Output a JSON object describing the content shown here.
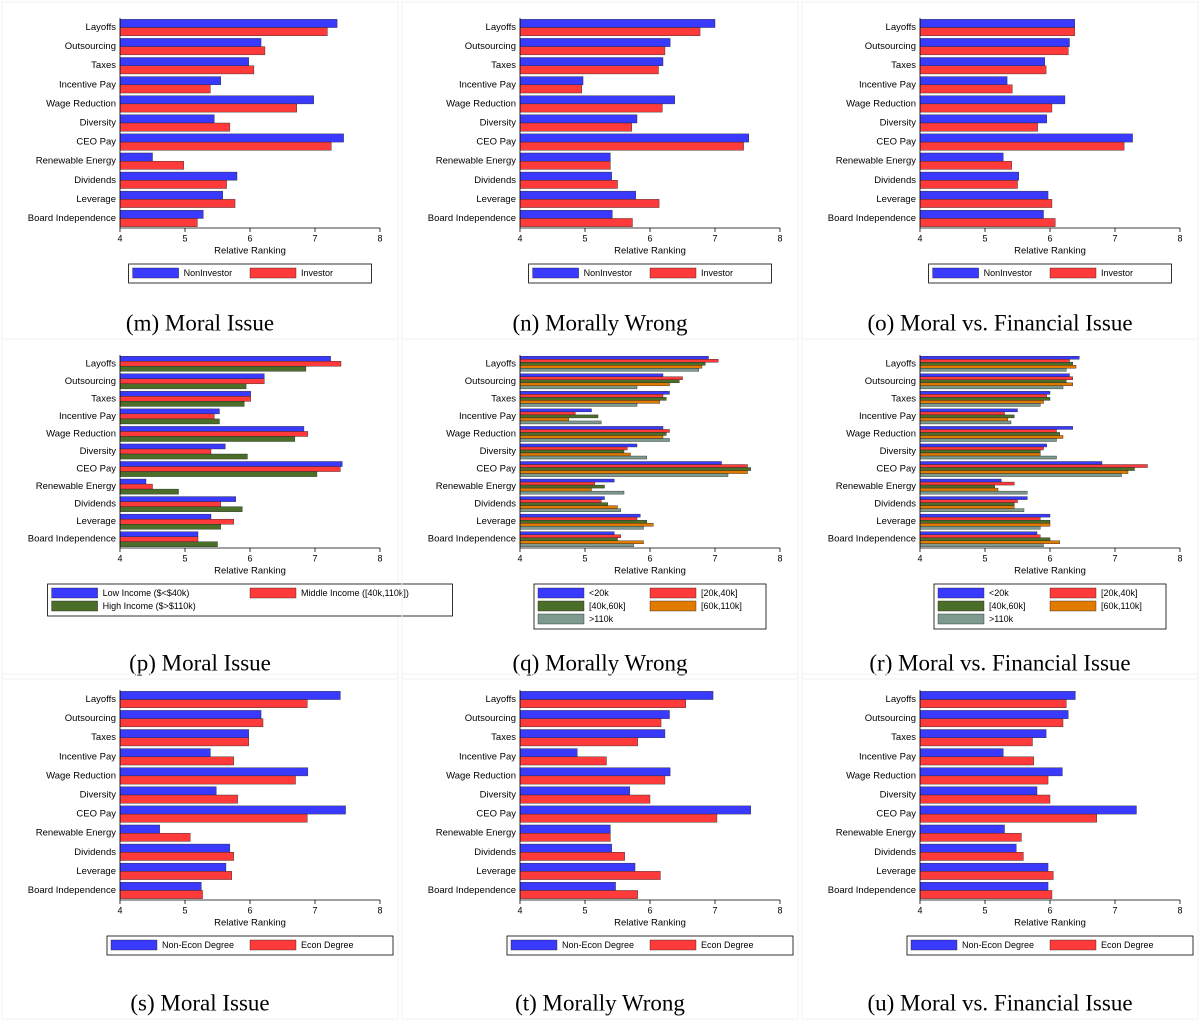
{
  "chart_data": [
    {
      "type": "hbar",
      "caption": "(m) Moral Issue",
      "x_label": "Relative Ranking",
      "xlim": [
        4,
        8
      ],
      "xticks": [
        4,
        5,
        6,
        7,
        8
      ],
      "categories": [
        "Layoffs",
        "Outsourcing",
        "Taxes",
        "Incentive Pay",
        "Wage Reduction",
        "Diversity",
        "CEO Pay",
        "Renewable Energy",
        "Dividends",
        "Leverage",
        "Board Independence"
      ],
      "series": [
        {
          "name": "NonInvestor",
          "color": "#3a3aff",
          "values": [
            7.34,
            6.17,
            5.98,
            5.55,
            6.98,
            5.45,
            7.44,
            4.5,
            5.8,
            5.58,
            5.28
          ]
        },
        {
          "name": "Investor",
          "color": "#ff3a3a",
          "values": [
            7.19,
            6.23,
            6.06,
            5.39,
            6.72,
            5.69,
            7.25,
            4.98,
            5.64,
            5.77,
            5.19
          ]
        }
      ]
    },
    {
      "type": "hbar",
      "caption": "(n) Morally Wrong",
      "x_label": "Relative Ranking",
      "xlim": [
        4,
        8
      ],
      "xticks": [
        4,
        5,
        6,
        7,
        8
      ],
      "categories": [
        "Layoffs",
        "Outsourcing",
        "Taxes",
        "Incentive Pay",
        "Wage Reduction",
        "Diversity",
        "CEO Pay",
        "Renewable Energy",
        "Dividends",
        "Leverage",
        "Board Independence"
      ],
      "series": [
        {
          "name": "NonInvestor",
          "color": "#3a3aff",
          "values": [
            7.0,
            6.31,
            6.2,
            4.97,
            6.38,
            5.8,
            7.52,
            5.39,
            5.41,
            5.78,
            5.42
          ]
        },
        {
          "name": "Investor",
          "color": "#ff3a3a",
          "values": [
            6.77,
            6.23,
            6.13,
            4.95,
            6.19,
            5.72,
            7.44,
            5.39,
            5.5,
            6.14,
            5.73
          ]
        }
      ]
    },
    {
      "type": "hbar",
      "caption": "(o) Moral vs. Financial Issue",
      "x_label": "Relative Ranking",
      "xlim": [
        4,
        8
      ],
      "xticks": [
        4,
        5,
        6,
        7,
        8
      ],
      "categories": [
        "Layoffs",
        "Outsourcing",
        "Taxes",
        "Incentive Pay",
        "Wage Reduction",
        "Diversity",
        "CEO Pay",
        "Renewable Energy",
        "Dividends",
        "Leverage",
        "Board Independence"
      ],
      "series": [
        {
          "name": "NonInvestor",
          "color": "#3a3aff",
          "values": [
            6.38,
            6.3,
            5.92,
            5.34,
            6.23,
            5.95,
            7.27,
            5.28,
            5.52,
            5.97,
            5.9
          ]
        },
        {
          "name": "Investor",
          "color": "#ff3a3a",
          "values": [
            6.38,
            6.28,
            5.94,
            5.42,
            6.03,
            5.81,
            7.14,
            5.41,
            5.5,
            6.03,
            6.08
          ]
        }
      ]
    },
    {
      "type": "hbar",
      "caption": "(p) Moral Issue",
      "x_label": "Relative Ranking",
      "xlim": [
        4,
        8
      ],
      "xticks": [
        4,
        5,
        6,
        7,
        8
      ],
      "categories": [
        "Layoffs",
        "Outsourcing",
        "Taxes",
        "Incentive Pay",
        "Wage Reduction",
        "Diversity",
        "CEO Pay",
        "Renewable Energy",
        "Dividends",
        "Leverage",
        "Board Independence"
      ],
      "series": [
        {
          "name": "Low Income ($<$40k)",
          "color": "#3a3aff",
          "values": [
            7.24,
            6.22,
            6.01,
            5.53,
            6.83,
            5.62,
            7.42,
            4.4,
            5.78,
            5.4,
            5.2
          ]
        },
        {
          "name": "Middle Income ([40k,110k])",
          "color": "#ff3a3a",
          "values": [
            7.4,
            6.22,
            6.01,
            5.45,
            6.89,
            5.4,
            7.39,
            4.5,
            5.55,
            5.75,
            5.2
          ]
        },
        {
          "name": "High Income ($>$110k)",
          "color": "#4b6e28",
          "values": [
            6.86,
            5.94,
            5.91,
            5.53,
            6.69,
            5.96,
            7.03,
            4.9,
            5.88,
            5.55,
            5.5
          ]
        }
      ]
    },
    {
      "type": "hbar",
      "caption": "(q) Morally Wrong",
      "x_label": "Relative Ranking",
      "xlim": [
        4,
        8
      ],
      "xticks": [
        4,
        5,
        6,
        7,
        8
      ],
      "categories": [
        "Layoffs",
        "Outsourcing",
        "Taxes",
        "Incentive Pay",
        "Wage Reduction",
        "Diversity",
        "CEO Pay",
        "Renewable Energy",
        "Dividends",
        "Leverage",
        "Board Independence"
      ],
      "series": [
        {
          "name": "<20k",
          "color": "#3a3aff",
          "values": [
            6.9,
            6.2,
            6.3,
            5.1,
            6.2,
            5.8,
            7.1,
            5.45,
            5.3,
            5.85,
            5.45
          ]
        },
        {
          "name": "[20k,40k]",
          "color": "#ff3a3a",
          "values": [
            7.05,
            6.5,
            6.2,
            4.85,
            6.3,
            5.65,
            7.5,
            5.15,
            5.25,
            5.8,
            5.55
          ]
        },
        {
          "name": "[40k,60k]",
          "color": "#4b6e28",
          "values": [
            6.85,
            6.45,
            6.25,
            5.2,
            6.25,
            5.6,
            7.55,
            5.3,
            5.35,
            5.95,
            5.5
          ]
        },
        {
          "name": "[60k,110k]",
          "color": "#e07b00",
          "values": [
            6.8,
            6.3,
            6.15,
            4.75,
            6.2,
            5.7,
            7.5,
            5.1,
            5.5,
            6.05,
            5.9
          ]
        },
        {
          "name": ">110k",
          "color": "#7c9a8d",
          "values": [
            6.75,
            5.8,
            5.8,
            5.25,
            6.3,
            5.95,
            7.2,
            5.6,
            5.55,
            5.9,
            5.75
          ]
        }
      ]
    },
    {
      "type": "hbar",
      "caption": "(r) Moral vs. Financial Issue",
      "x_label": "Relative Ranking",
      "xlim": [
        4,
        8
      ],
      "xticks": [
        4,
        5,
        6,
        7,
        8
      ],
      "categories": [
        "Layoffs",
        "Outsourcing",
        "Taxes",
        "Incentive Pay",
        "Wage Reduction",
        "Diversity",
        "CEO Pay",
        "Renewable Energy",
        "Dividends",
        "Leverage",
        "Board Independence"
      ],
      "series": [
        {
          "name": "<20k",
          "color": "#3a3aff",
          "values": [
            6.45,
            6.3,
            6.0,
            5.5,
            6.35,
            5.95,
            6.8,
            5.25,
            5.65,
            6.0,
            5.8
          ]
        },
        {
          "name": "[20k,40k]",
          "color": "#ff3a3a",
          "values": [
            6.3,
            6.35,
            5.95,
            5.3,
            6.1,
            5.9,
            7.5,
            5.45,
            5.5,
            5.85,
            5.85
          ]
        },
        {
          "name": "[40k,60k]",
          "color": "#4b6e28",
          "values": [
            6.35,
            6.25,
            6.0,
            5.45,
            6.15,
            5.85,
            7.3,
            5.15,
            5.45,
            6.0,
            6.0
          ]
        },
        {
          "name": "[60k,110k]",
          "color": "#e07b00",
          "values": [
            6.4,
            6.35,
            5.9,
            5.35,
            6.2,
            5.85,
            7.2,
            5.2,
            5.45,
            6.0,
            6.15
          ]
        },
        {
          "name": ">110k",
          "color": "#7c9a8d",
          "values": [
            6.25,
            6.2,
            5.85,
            5.4,
            6.1,
            6.1,
            7.1,
            5.65,
            5.6,
            5.85,
            5.9
          ]
        }
      ]
    },
    {
      "type": "hbar",
      "caption": "(s) Moral Issue",
      "x_label": "Relative Ranking",
      "xlim": [
        4,
        8
      ],
      "xticks": [
        4,
        5,
        6,
        7,
        8
      ],
      "categories": [
        "Layoffs",
        "Outsourcing",
        "Taxes",
        "Incentive Pay",
        "Wage Reduction",
        "Diversity",
        "CEO Pay",
        "Renewable Energy",
        "Dividends",
        "Leverage",
        "Board Independence"
      ],
      "series": [
        {
          "name": "Non-Econ Degree",
          "color": "#3a3aff",
          "values": [
            7.39,
            6.17,
            5.98,
            5.39,
            6.89,
            5.48,
            7.47,
            4.61,
            5.69,
            5.63,
            5.25
          ]
        },
        {
          "name": "Econ Degree",
          "color": "#ff3a3a",
          "values": [
            6.88,
            6.2,
            5.98,
            5.75,
            6.7,
            5.81,
            6.88,
            5.08,
            5.75,
            5.72,
            5.27
          ]
        }
      ]
    },
    {
      "type": "hbar",
      "caption": "(t) Morally Wrong",
      "x_label": "Relative Ranking",
      "xlim": [
        4,
        8
      ],
      "xticks": [
        4,
        5,
        6,
        7,
        8
      ],
      "categories": [
        "Layoffs",
        "Outsourcing",
        "Taxes",
        "Incentive Pay",
        "Wage Reduction",
        "Diversity",
        "CEO Pay",
        "Renewable Energy",
        "Dividends",
        "Leverage",
        "Board Independence"
      ],
      "series": [
        {
          "name": "Non-Econ Degree",
          "color": "#3a3aff",
          "values": [
            6.97,
            6.3,
            6.23,
            4.88,
            6.31,
            5.69,
            7.55,
            5.39,
            5.41,
            5.77,
            5.47
          ]
        },
        {
          "name": "Econ Degree",
          "color": "#ff3a3a",
          "values": [
            6.55,
            6.17,
            5.81,
            5.33,
            6.23,
            6.0,
            7.03,
            5.39,
            5.61,
            6.16,
            5.81
          ]
        }
      ]
    },
    {
      "type": "hbar",
      "caption": "(u) Moral vs. Financial Issue",
      "x_label": "Relative Ranking",
      "xlim": [
        4,
        8
      ],
      "xticks": [
        4,
        5,
        6,
        7,
        8
      ],
      "categories": [
        "Layoffs",
        "Outsourcing",
        "Taxes",
        "Incentive Pay",
        "Wage Reduction",
        "Diversity",
        "CEO Pay",
        "Renewable Energy",
        "Dividends",
        "Leverage",
        "Board Independence"
      ],
      "series": [
        {
          "name": "Non-Econ Degree",
          "color": "#3a3aff",
          "values": [
            6.39,
            6.28,
            5.94,
            5.28,
            6.19,
            5.8,
            7.33,
            5.3,
            5.48,
            5.97,
            5.97
          ]
        },
        {
          "name": "Econ Degree",
          "color": "#ff3a3a",
          "values": [
            6.25,
            6.2,
            5.73,
            5.75,
            5.97,
            6.0,
            6.72,
            5.56,
            5.59,
            6.05,
            6.03
          ]
        }
      ]
    }
  ]
}
